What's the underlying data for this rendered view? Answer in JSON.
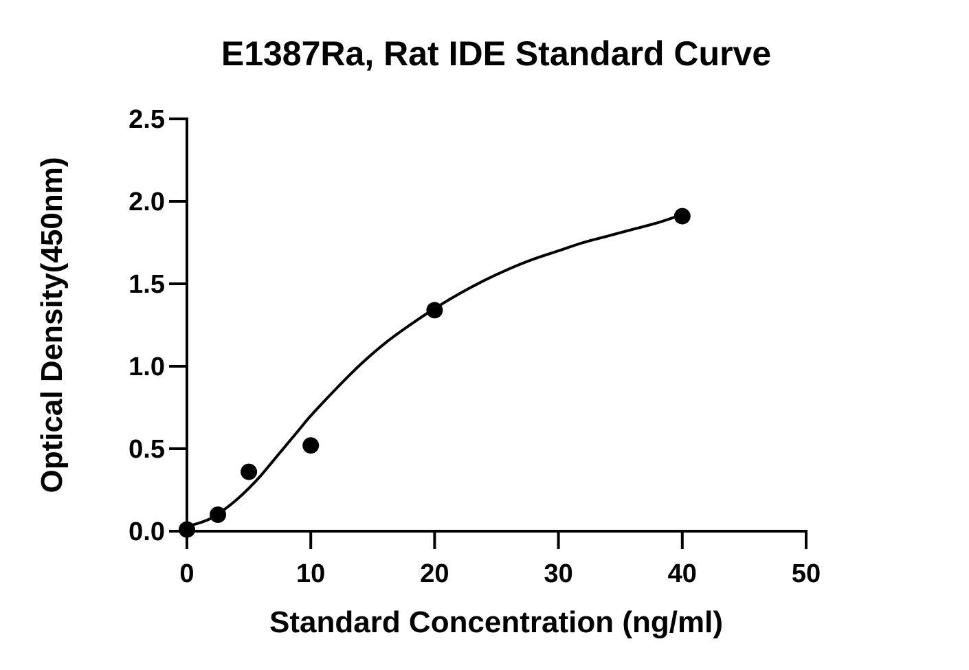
{
  "chart_data": {
    "type": "scatter",
    "title": "E1387Ra, Rat IDE Standard Curve",
    "xlabel": "Standard Concentration (ng/ml)",
    "ylabel": "Optical Density(450nm)",
    "xlim": [
      0,
      50
    ],
    "ylim": [
      0,
      2.5
    ],
    "x_ticks": [
      "0",
      "10",
      "20",
      "30",
      "40",
      "50"
    ],
    "y_ticks": [
      "0.0",
      "0.5",
      "1.0",
      "1.5",
      "2.0",
      "2.5"
    ],
    "grid": false,
    "legend": "none",
    "points": {
      "x": [
        0,
        2.5,
        5,
        10,
        20,
        40
      ],
      "y": [
        0.01,
        0.1,
        0.36,
        0.52,
        1.34,
        1.91
      ]
    },
    "fit_curve": {
      "x": [
        0,
        1,
        2,
        3,
        4,
        5,
        6,
        7,
        8,
        9,
        10,
        12,
        14,
        16,
        18,
        20,
        22,
        24,
        26,
        28,
        30,
        32,
        34,
        36,
        38,
        40
      ],
      "y": [
        0.03,
        0.05,
        0.08,
        0.13,
        0.19,
        0.26,
        0.34,
        0.43,
        0.52,
        0.61,
        0.7,
        0.86,
        1.01,
        1.14,
        1.25,
        1.35,
        1.44,
        1.52,
        1.59,
        1.65,
        1.7,
        1.75,
        1.79,
        1.83,
        1.87,
        1.92
      ]
    },
    "colors": {
      "points": "#000000",
      "curve": "#000000",
      "axes": "#000000"
    }
  }
}
